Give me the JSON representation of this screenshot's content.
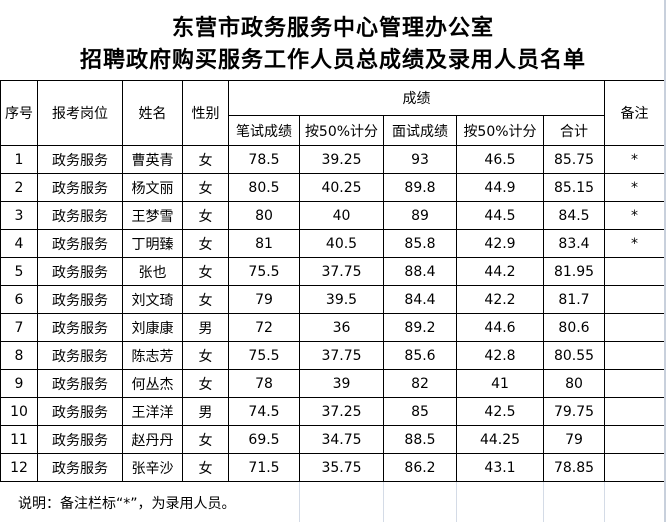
{
  "title_line1": "东营市政务服务中心管理办公室",
  "title_line2": "招聘政府购买服务工作人员总成绩及录用人员名单",
  "headers": {
    "seq": "序号",
    "position": "报考岗位",
    "name": "姓名",
    "gender": "性别",
    "scores": "成绩",
    "written": "笔试成绩",
    "written_50": "按50%计分",
    "interview": "面试成绩",
    "interview_50": "按50%计分",
    "total": "合计",
    "remark": "备注"
  },
  "rows": [
    [
      "1",
      "政务服务",
      "曹英青",
      "女",
      "78.5",
      "39.25",
      "93",
      "46.5",
      "85.75",
      "*"
    ],
    [
      "2",
      "政务服务",
      "杨文丽",
      "女",
      "80.5",
      "40.25",
      "89.8",
      "44.9",
      "85.15",
      "*"
    ],
    [
      "3",
      "政务服务",
      "王梦雪",
      "女",
      "80",
      "40",
      "89",
      "44.5",
      "84.5",
      "*"
    ],
    [
      "4",
      "政务服务",
      "丁明臻",
      "女",
      "81",
      "40.5",
      "85.8",
      "42.9",
      "83.4",
      "*"
    ],
    [
      "5",
      "政务服务",
      "张也",
      "女",
      "75.5",
      "37.75",
      "88.4",
      "44.2",
      "81.95",
      ""
    ],
    [
      "6",
      "政务服务",
      "刘文琦",
      "女",
      "79",
      "39.5",
      "84.4",
      "42.2",
      "81.7",
      ""
    ],
    [
      "7",
      "政务服务",
      "刘康康",
      "男",
      "72",
      "36",
      "89.2",
      "44.6",
      "80.6",
      ""
    ],
    [
      "8",
      "政务服务",
      "陈志芳",
      "女",
      "75.5",
      "37.75",
      "85.6",
      "42.8",
      "80.55",
      ""
    ],
    [
      "9",
      "政务服务",
      "何丛杰",
      "女",
      "78",
      "39",
      "82",
      "41",
      "80",
      ""
    ],
    [
      "10",
      "政务服务",
      "王洋洋",
      "男",
      "74.5",
      "37.25",
      "85",
      "42.5",
      "79.75",
      ""
    ],
    [
      "11",
      "政务服务",
      "赵丹丹",
      "女",
      "69.5",
      "34.75",
      "88.5",
      "44.25",
      "79",
      ""
    ],
    [
      "12",
      "政务服务",
      "张辛沙",
      "女",
      "71.5",
      "35.75",
      "86.2",
      "43.1",
      "78.85",
      ""
    ]
  ],
  "note": "说明：备注栏标“*”，为录用人员。"
}
